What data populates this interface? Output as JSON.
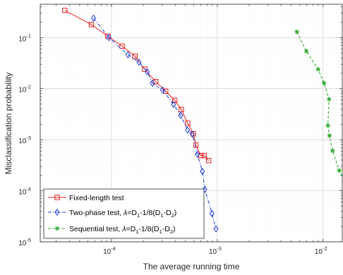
{
  "chart_data": {
    "type": "line",
    "xlabel": "The average running time",
    "ylabel": "Misclassification probability",
    "xscale": "log",
    "yscale": "log",
    "xlim": [
      2.12e-05,
      0.0152
    ],
    "ylim": [
      1e-05,
      0.45
    ],
    "grid": true,
    "legend_position": "bottom-left",
    "x_tick_labels": [
      {
        "value": 0.0001,
        "base": "10",
        "exp": "-4"
      },
      {
        "value": 0.001,
        "base": "10",
        "exp": "-3"
      },
      {
        "value": 0.01,
        "base": "10",
        "exp": "-2"
      }
    ],
    "y_tick_labels": [
      {
        "value": 1e-05,
        "base": "10",
        "exp": "-5"
      },
      {
        "value": 0.0001,
        "base": "10",
        "exp": "-4"
      },
      {
        "value": 0.001,
        "base": "10",
        "exp": "-3"
      },
      {
        "value": 0.01,
        "base": "10",
        "exp": "-2"
      },
      {
        "value": 0.1,
        "base": "10",
        "exp": "-1"
      }
    ],
    "series": [
      {
        "name": "Fixed-length test",
        "color": "#e8211d",
        "line": "solid",
        "marker": "square",
        "x": [
          3.62e-05,
          6.46e-05,
          9.25e-05,
          0.000126,
          0.000167,
          0.000206,
          0.000262,
          0.000325,
          0.000396,
          0.000457,
          0.000525,
          0.000594,
          0.000628,
          0.000701,
          0.000752,
          0.000828
        ],
        "y": [
          0.34,
          0.18,
          0.106,
          0.068,
          0.043,
          0.024,
          0.0137,
          0.0089,
          0.0059,
          0.0039,
          0.0021,
          0.00131,
          0.00078,
          0.00049,
          0.00049,
          0.00039
        ]
      },
      {
        "name": "Two-phase test, λ=D1-1/8(D1-D2)",
        "name_parts": {
          "prefix": "Two-phase test, ",
          "lambda": "λ",
          "eq": "=D",
          "sub1": "1",
          "mid": "-1/8(D",
          "sub1b": "1",
          "dash": "-D",
          "sub2": "2",
          "close": ")"
        },
        "color": "#1f3fd6",
        "line": "dashdot",
        "marker": "diamond",
        "x": [
          6.76e-05,
          9.45e-05,
          0.000143,
          0.000182,
          0.000218,
          0.000244,
          0.000305,
          0.000386,
          0.000451,
          0.000523,
          0.000582,
          0.000648,
          0.000723,
          0.000762,
          0.000891,
          0.000972
        ],
        "y": [
          0.24,
          0.1,
          0.046,
          0.033,
          0.0214,
          0.0128,
          0.0094,
          0.0049,
          0.003,
          0.00155,
          0.00128,
          0.00052,
          0.00024,
          0.000107,
          3.6e-05,
          1.8e-05
        ]
      },
      {
        "name": "Sequential test, λ=D1-1/8(D1-D2)",
        "name_parts": {
          "prefix": "Sequential test, ",
          "lambda": "λ",
          "eq": "=D",
          "sub1": "1",
          "mid": "-1/8(D",
          "sub1b": "1",
          "dash": "-D",
          "sub2": "2",
          "close": ")"
        },
        "color": "#2aa62a",
        "line": "dashed",
        "marker": "star",
        "x": [
          0.00565,
          0.00695,
          0.00898,
          0.0102,
          0.0114,
          0.0111,
          0.0115,
          0.0123,
          0.0142,
          0.0158
        ],
        "y": [
          0.13,
          0.054,
          0.024,
          0.0129,
          0.0062,
          0.0019,
          0.0012,
          0.00061,
          0.00025,
          0.00015
        ]
      }
    ]
  }
}
